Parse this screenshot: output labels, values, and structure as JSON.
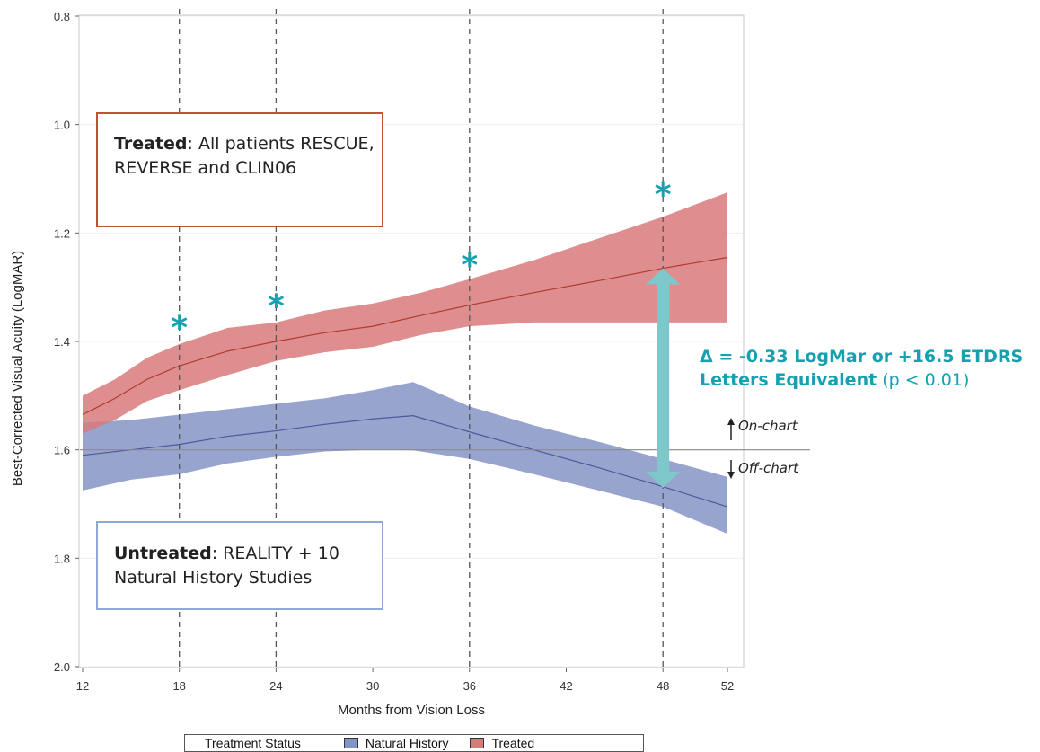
{
  "chart_data": {
    "type": "area",
    "xlabel": "Months from Vision Loss",
    "ylabel": "Best-Corrected Visual Acuity (LogMAR)",
    "xlim": [
      12,
      52
    ],
    "ylim": [
      0.8,
      2.0
    ],
    "y_inverted": true,
    "x_ticks": [
      12,
      18,
      24,
      30,
      36,
      42,
      48,
      52
    ],
    "y_ticks": [
      "0.8",
      "1.0",
      "1.2",
      "1.4",
      "1.6",
      "1.8",
      "2.0"
    ],
    "vertical_dashed_lines_x": [
      18,
      24,
      36,
      48
    ],
    "reference_line_y": 1.6,
    "grid": false,
    "series": [
      {
        "name": "Natural History",
        "color": "#8594c6",
        "line_color": "#4a5a9a",
        "x": [
          12,
          15,
          18,
          21,
          24,
          27,
          30,
          32.5,
          36,
          40,
          44,
          48,
          52
        ],
        "mean": [
          1.61,
          1.6,
          1.59,
          1.575,
          1.565,
          1.553,
          1.543,
          1.537,
          1.567,
          1.6,
          1.633,
          1.668,
          1.705
        ],
        "lower": [
          1.55,
          1.545,
          1.535,
          1.525,
          1.515,
          1.505,
          1.49,
          1.475,
          1.52,
          1.555,
          1.585,
          1.617,
          1.65
        ],
        "upper": [
          1.675,
          1.655,
          1.645,
          1.625,
          1.613,
          1.603,
          1.6,
          1.601,
          1.617,
          1.645,
          1.675,
          1.705,
          1.755
        ]
      },
      {
        "name": "Treated",
        "color": "#d97a7b",
        "line_color": "#b03a30",
        "x": [
          12,
          14,
          16,
          18,
          21,
          24,
          27,
          30,
          33,
          36,
          40,
          44,
          48,
          52
        ],
        "mean": [
          1.535,
          1.505,
          1.47,
          1.445,
          1.418,
          1.4,
          1.384,
          1.372,
          1.352,
          1.333,
          1.31,
          1.288,
          1.265,
          1.245
        ],
        "lower": [
          1.5,
          1.47,
          1.43,
          1.405,
          1.375,
          1.365,
          1.343,
          1.33,
          1.31,
          1.285,
          1.25,
          1.21,
          1.17,
          1.125
        ],
        "upper": [
          1.57,
          1.545,
          1.51,
          1.49,
          1.462,
          1.436,
          1.42,
          1.41,
          1.388,
          1.372,
          1.365,
          1.365,
          1.365,
          1.365
        ]
      }
    ],
    "significance_markers": [
      {
        "x": 18,
        "y": 1.365,
        "symbol": "*"
      },
      {
        "x": 24,
        "y": 1.325,
        "symbol": "*"
      },
      {
        "x": 36,
        "y": 1.25,
        "symbol": "*"
      },
      {
        "x": 48,
        "y": 1.12,
        "symbol": "*"
      }
    ],
    "delta_arrow": {
      "x": 48,
      "y_from": 1.265,
      "y_to": 1.67,
      "color": "#7ec8cc"
    },
    "annotations": {
      "treated_bold": "Treated",
      "treated_rest": ": All patients RESCUE, REVERSE and CLIN06",
      "untreated_bold": "Untreated",
      "untreated_rest": ": REALITY + 10 Natural History Studies",
      "delta_bold": "Δ = -0.33 LogMar or +16.5 ETDRS Letters Equivalent",
      "delta_rest": " (p < 0.01)",
      "on_chart": "On-chart",
      "off_chart": "Off-chart"
    },
    "legend": {
      "title": "Treatment Status",
      "items": [
        "Natural History",
        "Treated"
      ],
      "position": "bottom"
    },
    "colors": {
      "marker": "#17a1b0",
      "treated_box_border": "#c0503a",
      "untreated_box_border": "#8fa8d4"
    }
  }
}
